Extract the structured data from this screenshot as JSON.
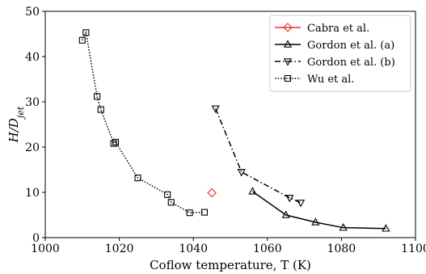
{
  "chart_data": {
    "type": "scatter",
    "xlabel": "Coflow temperature, T (K)",
    "ylabel_main": "H/D",
    "ylabel_sub": "jet",
    "xlim": [
      1000,
      1100
    ],
    "ylim": [
      0,
      50
    ],
    "xticks": [
      1000,
      1020,
      1040,
      1060,
      1080,
      1100
    ],
    "yticks": [
      0,
      10,
      20,
      30,
      40,
      50
    ],
    "grid": false,
    "legend_position": "top-right",
    "series": [
      {
        "name": "Cabra et al.",
        "color": "#e8312c",
        "marker": "diamond",
        "line": "none",
        "points": [
          [
            1045,
            9.9
          ]
        ]
      },
      {
        "name": "Gordon et al. (a)",
        "color": "#000000",
        "marker": "triangle-up",
        "line": "solid",
        "points": [
          [
            1056,
            10.2
          ],
          [
            1065,
            5.0
          ],
          [
            1073,
            3.4
          ],
          [
            1080.5,
            2.2
          ],
          [
            1092,
            2.0
          ]
        ]
      },
      {
        "name": "Gordon et al. (b)",
        "color": "#000000",
        "marker": "triangle-down",
        "line": "dashdot",
        "points": [
          [
            1046,
            28.5
          ],
          [
            1053,
            14.5
          ],
          [
            1066,
            8.8
          ],
          [
            1069,
            7.7
          ]
        ]
      },
      {
        "name": "Wu et al.",
        "color": "#000000",
        "marker": "square",
        "line": "dotted",
        "points": [
          [
            1010,
            43.6
          ],
          [
            1011,
            45.3
          ],
          [
            1014,
            31.2
          ],
          [
            1015,
            28.3
          ],
          [
            1018.5,
            20.8
          ],
          [
            1019,
            21.1
          ],
          [
            1025,
            13.2
          ],
          [
            1033,
            9.5
          ],
          [
            1034,
            7.8
          ],
          [
            1039,
            5.5
          ],
          [
            1043,
            5.6
          ]
        ]
      }
    ]
  }
}
